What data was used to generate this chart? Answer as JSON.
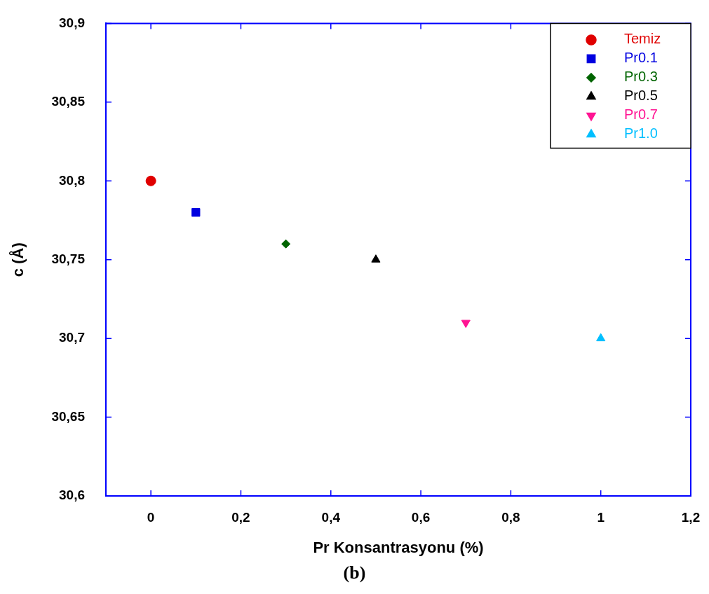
{
  "chart_data": {
    "type": "scatter",
    "xlabel": "Pr Konsantrasyonu (%)",
    "ylabel": "c (Å)",
    "annotations": [
      "(b)"
    ],
    "xlim": [
      -0.1,
      1.2
    ],
    "ylim": [
      30.6,
      30.9
    ],
    "xticks": [
      0,
      {
        "value": 0.2,
        "label": "0,2"
      },
      {
        "value": 0.4,
        "label": "0,4"
      },
      {
        "value": 0.6,
        "label": "0,6"
      },
      {
        "value": 0.8,
        "label": "0,8"
      },
      1,
      {
        "value": 1.2,
        "label": "1,2"
      }
    ],
    "yticks": [
      {
        "value": 30.6,
        "label": "30,6"
      },
      {
        "value": 30.65,
        "label": "30,65"
      },
      {
        "value": 30.7,
        "label": "30,7"
      },
      {
        "value": 30.75,
        "label": "30,75"
      },
      {
        "value": 30.8,
        "label": "30,8"
      },
      {
        "value": 30.85,
        "label": "30,85"
      },
      {
        "value": 30.9,
        "label": "30,9"
      }
    ],
    "grid": false,
    "legend": "top right",
    "series": [
      {
        "name": "Temiz",
        "color": "#e00000",
        "marker": "circle",
        "x": [
          0
        ],
        "values": [
          30.8
        ]
      },
      {
        "name": "Pr0.1",
        "color": "#0000e0",
        "marker": "square",
        "x": [
          0.1
        ],
        "values": [
          30.78
        ]
      },
      {
        "name": "Pr0.3",
        "color": "#006400",
        "marker": "diamond",
        "x": [
          0.3
        ],
        "values": [
          30.76
        ]
      },
      {
        "name": "Pr0.5",
        "color": "#000000",
        "marker": "triangle",
        "x": [
          0.5
        ],
        "values": [
          30.75
        ]
      },
      {
        "name": "Pr0.7",
        "color": "#ff1493",
        "marker": "triangle-down",
        "x": [
          0.7
        ],
        "values": [
          30.71
        ]
      },
      {
        "name": "Pr1.0",
        "color": "#00bfff",
        "marker": "triangle",
        "x": [
          1
        ],
        "values": [
          30.7
        ]
      }
    ]
  }
}
